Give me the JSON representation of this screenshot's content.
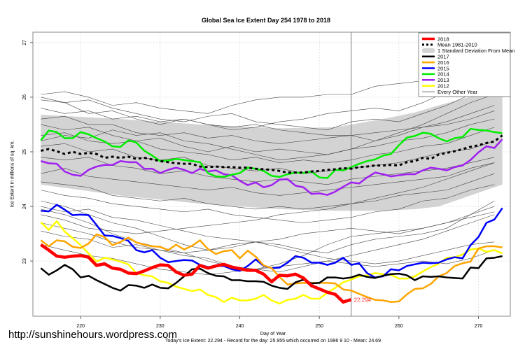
{
  "chart_data": {
    "type": "line",
    "title": "Global Sea Ice Extent Day 254 1978 to 2018",
    "xlabel": "Day of Year",
    "ylabel": "Ice Extent in millions of sq. km.",
    "xlim": [
      214,
      274
    ],
    "ylim": [
      21.99,
      27.19
    ],
    "xticks": [
      220,
      230,
      240,
      250,
      260,
      270
    ],
    "yticks": [
      23,
      24,
      25,
      26,
      27
    ],
    "grid": true,
    "current_day_marker": 254,
    "legend_position": "top-right",
    "series": [
      {
        "name": "2018",
        "color": "#ff0000",
        "width": 4.5,
        "dash": "",
        "start_day": 215,
        "values": [
          23.3,
          23.2,
          23.09,
          23.07,
          23.09,
          23.1,
          23.07,
          22.92,
          22.95,
          22.87,
          22.85,
          22.78,
          22.77,
          22.82,
          22.88,
          22.93,
          22.92,
          22.8,
          22.74,
          22.76,
          22.92,
          22.87,
          22.91,
          22.94,
          22.89,
          22.86,
          22.83,
          22.83,
          22.76,
          22.62,
          22.74,
          22.73,
          22.76,
          22.69,
          22.55,
          22.49,
          22.43,
          22.39,
          22.25,
          22.294
        ]
      },
      {
        "name": "Mean 1981-2010",
        "color": "#000000",
        "width": 3,
        "dash": "4,4",
        "start_day": 215,
        "values": [
          25.02,
          25.05,
          25.01,
          24.96,
          25.0,
          24.96,
          24.98,
          24.96,
          24.89,
          24.91,
          24.89,
          24.91,
          24.87,
          24.89,
          24.86,
          24.83,
          24.81,
          24.79,
          24.78,
          24.78,
          24.73,
          24.72,
          24.73,
          24.72,
          24.72,
          24.71,
          24.71,
          24.69,
          24.68,
          24.67,
          24.65,
          24.62,
          24.62,
          24.62,
          24.64,
          24.65,
          24.67,
          24.68,
          24.7,
          24.69,
          24.72,
          24.73,
          24.75,
          24.75,
          24.76,
          24.75,
          24.81,
          24.83,
          24.89,
          24.87,
          24.95,
          24.98,
          25.01,
          25.05,
          25.09,
          25.12,
          25.16,
          25.19,
          25.3
        ]
      },
      {
        "name": "2017",
        "color": "#000000",
        "width": 2.5,
        "dash": "",
        "start_day": 215,
        "values": [
          22.87,
          22.75,
          22.83,
          22.93,
          22.85,
          22.7,
          22.73,
          22.65,
          22.58,
          22.51,
          22.46,
          22.56,
          22.55,
          22.51,
          22.57,
          22.51,
          22.5,
          22.6,
          22.72,
          22.85,
          22.86,
          22.78,
          22.73,
          22.72,
          22.65,
          22.65,
          22.63,
          22.63,
          22.62,
          22.55,
          22.51,
          22.49,
          22.61,
          22.66,
          22.59,
          22.6,
          22.7,
          22.7,
          22.68,
          22.7,
          22.75,
          22.71,
          22.69,
          22.73,
          22.76,
          22.77,
          22.74,
          22.65,
          22.72,
          22.71,
          22.72,
          22.7,
          22.69,
          22.68,
          22.88,
          22.87,
          23.05,
          23.06,
          23.09
        ]
      },
      {
        "name": "2016",
        "color": "#ffa500",
        "width": 2.5,
        "dash": "",
        "start_day": 215,
        "values": [
          23.38,
          23.27,
          23.38,
          23.36,
          23.26,
          23.24,
          23.32,
          23.49,
          23.44,
          23.29,
          23.35,
          23.43,
          23.34,
          23.3,
          23.27,
          23.26,
          23.2,
          23.3,
          23.21,
          23.28,
          23.38,
          23.22,
          23.13,
          23.18,
          23.2,
          23.05,
          23.19,
          23.08,
          22.92,
          22.87,
          22.71,
          22.57,
          22.59,
          22.6,
          22.6,
          22.6,
          22.6,
          22.59,
          22.48,
          22.46,
          22.4,
          22.34,
          22.29,
          22.28,
          22.25,
          22.26,
          22.39,
          22.49,
          22.5,
          22.58,
          22.72,
          22.78,
          22.91,
          22.96,
          22.99,
          23.23,
          23.27,
          23.27,
          23.25
        ]
      },
      {
        "name": "2015",
        "color": "#0000ff",
        "width": 2.5,
        "dash": "",
        "start_day": 215,
        "values": [
          23.92,
          23.91,
          24.03,
          23.94,
          23.84,
          23.85,
          23.84,
          23.66,
          23.47,
          23.46,
          23.42,
          23.37,
          23.2,
          23.16,
          23.2,
          23.06,
          22.98,
          23.0,
          23.02,
          23.01,
          22.93,
          22.89,
          22.91,
          22.91,
          22.85,
          22.82,
          22.91,
          23.03,
          22.91,
          22.87,
          22.88,
          22.97,
          23.09,
          23.06,
          22.97,
          22.97,
          22.93,
          22.97,
          23.06,
          22.93,
          22.96,
          22.78,
          22.7,
          22.72,
          22.85,
          22.83,
          22.91,
          22.94,
          22.97,
          22.96,
          22.97,
          23.03,
          23.07,
          23.05,
          23.29,
          23.44,
          23.7,
          23.76,
          23.97
        ]
      },
      {
        "name": "2014",
        "color": "#00ee00",
        "width": 2.5,
        "dash": "",
        "start_day": 215,
        "values": [
          25.21,
          25.39,
          25.36,
          25.25,
          25.25,
          25.36,
          25.32,
          25.25,
          25.19,
          25.1,
          25.09,
          25.21,
          25.17,
          25.02,
          24.93,
          24.83,
          24.84,
          24.87,
          24.85,
          24.83,
          24.81,
          24.61,
          24.55,
          24.54,
          24.58,
          24.61,
          24.71,
          24.69,
          24.65,
          24.56,
          24.54,
          24.59,
          24.62,
          24.61,
          24.64,
          24.53,
          24.52,
          24.67,
          24.66,
          24.72,
          24.78,
          24.83,
          24.86,
          24.93,
          24.96,
          25.12,
          25.26,
          25.29,
          25.35,
          25.33,
          25.25,
          25.19,
          25.25,
          25.27,
          25.42,
          25.4,
          25.39,
          25.36,
          25.34
        ]
      },
      {
        "name": "2013",
        "color": "#a020f0",
        "width": 2.5,
        "dash": "",
        "start_day": 215,
        "values": [
          24.83,
          24.79,
          24.78,
          24.64,
          24.58,
          24.56,
          24.67,
          24.73,
          24.76,
          24.76,
          24.83,
          24.81,
          24.81,
          24.69,
          24.69,
          24.61,
          24.67,
          24.71,
          24.67,
          24.61,
          24.69,
          24.64,
          24.66,
          24.59,
          24.57,
          24.47,
          24.39,
          24.44,
          24.35,
          24.39,
          24.49,
          24.5,
          24.38,
          24.35,
          24.23,
          24.24,
          24.21,
          24.27,
          24.36,
          24.44,
          24.42,
          24.53,
          24.62,
          24.59,
          24.55,
          24.57,
          24.59,
          24.59,
          24.66,
          24.71,
          24.69,
          24.66,
          24.72,
          24.75,
          24.85,
          24.99,
          25.1,
          25.07,
          25.23
        ]
      },
      {
        "name": "2012",
        "color": "#ffff00",
        "width": 2.5,
        "dash": "",
        "start_day": 215,
        "values": [
          23.71,
          23.57,
          23.73,
          23.54,
          23.42,
          23.29,
          23.14,
          22.99,
          23.06,
          23.03,
          22.99,
          22.94,
          22.78,
          22.74,
          22.72,
          22.63,
          22.6,
          22.53,
          22.49,
          22.45,
          22.48,
          22.38,
          22.34,
          22.25,
          22.33,
          22.28,
          22.28,
          22.31,
          22.38,
          22.28,
          22.22,
          22.29,
          22.31,
          22.38,
          22.31,
          22.31,
          22.42,
          22.51,
          22.61,
          22.66,
          22.72,
          22.74,
          22.78,
          22.76,
          22.75,
          22.68,
          22.68,
          22.72,
          22.81,
          22.89,
          22.95,
          23.06,
          23.07,
          23.12,
          23.21,
          23.23,
          23.17,
          23.2,
          23.14
        ]
      }
    ],
    "std_band": {
      "name": "1 Standard Deviation From Mean",
      "color": "#d3d3d3",
      "days": [
        215,
        225,
        235,
        245,
        252,
        258,
        262,
        265,
        268,
        270,
        273
      ],
      "upper": [
        25.68,
        25.6,
        25.5,
        25.43,
        25.45,
        25.6,
        25.72,
        25.85,
        25.97,
        26.05,
        26.25
      ],
      "lower": [
        24.4,
        24.2,
        24.05,
        23.95,
        23.92,
        23.92,
        23.95,
        24.0,
        24.15,
        24.25,
        24.4
      ]
    },
    "other_years": {
      "name": "Every Other Year",
      "color": "#444444",
      "days": [
        215,
        218,
        221,
        224,
        227,
        230,
        233,
        236,
        239,
        242,
        245,
        248,
        251,
        254,
        257,
        260,
        263,
        266,
        269,
        272
      ],
      "lines": [
        [
          26.05,
          26.1,
          26.0,
          25.85,
          25.9,
          25.8,
          25.75,
          25.7,
          25.85,
          25.95,
          26.0,
          26.0,
          26.05,
          26.05,
          26.2,
          26.25,
          26.3,
          26.4,
          26.45,
          26.6
        ],
        [
          25.95,
          25.9,
          25.7,
          25.75,
          25.6,
          25.5,
          25.6,
          25.5,
          25.4,
          25.45,
          25.55,
          25.6,
          25.7,
          25.75,
          25.8,
          25.75,
          25.9,
          26.1,
          26.3,
          26.45
        ],
        [
          26.0,
          25.9,
          25.95,
          25.8,
          25.7,
          25.6,
          25.55,
          25.65,
          25.7,
          25.55,
          25.5,
          25.45,
          25.4,
          25.55,
          25.6,
          25.55,
          25.7,
          25.85,
          26.05,
          26.2
        ],
        [
          25.8,
          25.7,
          25.75,
          25.6,
          25.65,
          25.55,
          25.6,
          25.5,
          25.45,
          25.5,
          25.4,
          25.35,
          25.3,
          25.3,
          25.35,
          25.4,
          25.45,
          25.55,
          25.7,
          25.85
        ],
        [
          25.6,
          25.65,
          25.5,
          25.5,
          25.35,
          25.3,
          25.35,
          25.25,
          25.3,
          25.2,
          25.15,
          25.2,
          25.25,
          25.3,
          25.2,
          25.3,
          25.45,
          25.5,
          25.6,
          25.75
        ],
        [
          25.5,
          25.4,
          25.45,
          25.3,
          25.2,
          25.25,
          25.1,
          25.0,
          25.1,
          25.0,
          25.05,
          25.0,
          24.95,
          25.05,
          25.1,
          25.2,
          25.25,
          25.35,
          25.5,
          25.6
        ],
        [
          25.3,
          25.35,
          25.2,
          25.15,
          25.2,
          25.05,
          25.0,
          24.95,
          24.85,
          24.9,
          24.8,
          24.85,
          24.8,
          24.85,
          24.95,
          25.0,
          25.1,
          25.15,
          25.3,
          25.45
        ],
        [
          25.1,
          25.15,
          25.0,
          25.05,
          24.9,
          24.85,
          24.9,
          24.75,
          24.7,
          24.65,
          24.7,
          24.6,
          24.65,
          24.7,
          24.75,
          24.8,
          24.9,
          25.0,
          25.05,
          25.2
        ],
        [
          24.9,
          24.85,
          24.9,
          24.75,
          24.7,
          24.6,
          24.65,
          24.55,
          24.5,
          24.45,
          24.5,
          24.45,
          24.4,
          24.5,
          24.55,
          24.6,
          24.65,
          24.7,
          24.8,
          24.9
        ],
        [
          24.6,
          24.7,
          24.55,
          24.5,
          24.45,
          24.4,
          24.35,
          24.3,
          24.35,
          24.25,
          24.2,
          24.25,
          24.3,
          24.35,
          24.4,
          24.45,
          24.5,
          24.55,
          24.7,
          24.8
        ],
        [
          24.45,
          24.4,
          24.35,
          24.2,
          24.15,
          24.1,
          24.15,
          24.05,
          24.0,
          23.95,
          24.0,
          23.95,
          24.0,
          24.05,
          24.1,
          24.2,
          24.25,
          24.3,
          24.45,
          24.6
        ],
        [
          24.3,
          24.2,
          24.15,
          24.05,
          24.0,
          23.95,
          23.9,
          23.95,
          23.85,
          23.8,
          23.75,
          23.7,
          23.75,
          23.8,
          23.9,
          23.95,
          24.1,
          24.15,
          24.3,
          24.4
        ],
        [
          24.1,
          24.0,
          23.85,
          23.7,
          23.6,
          23.45,
          23.3,
          23.2,
          23.25,
          23.35,
          23.4,
          23.5,
          23.55,
          23.6,
          23.55,
          23.5,
          23.6,
          23.7,
          23.8,
          23.9
        ],
        [
          23.85,
          23.75,
          23.6,
          23.55,
          23.5,
          23.55,
          23.6,
          23.65,
          23.7,
          23.75,
          23.85,
          23.9,
          23.95,
          24.05,
          24.15,
          24.25,
          24.35,
          24.5,
          24.65,
          24.8
        ],
        [
          23.7,
          23.6,
          23.5,
          23.35,
          23.25,
          23.2,
          23.1,
          23.05,
          22.9,
          22.85,
          22.8,
          22.9,
          23.0,
          23.1,
          23.2,
          23.3,
          23.4,
          23.55,
          23.7,
          23.85
        ],
        [
          23.55,
          23.45,
          23.4,
          23.25,
          23.3,
          23.2,
          23.15,
          23.2,
          23.3,
          23.35,
          23.25,
          23.15,
          23.05,
          23.0,
          22.95,
          23.0,
          23.1,
          23.2,
          23.3,
          23.35
        ],
        [
          23.95,
          23.85,
          23.7,
          23.5,
          23.35,
          23.25,
          23.15,
          23.0,
          22.9,
          22.85,
          22.95,
          23.1,
          23.3,
          23.45,
          23.5,
          23.55,
          23.6,
          23.7,
          23.85,
          24.0
        ],
        [
          24.0,
          23.9,
          23.95,
          23.8,
          23.75,
          23.65,
          23.55,
          23.45,
          23.4,
          23.35,
          23.3,
          23.2,
          23.15,
          23.3,
          23.4,
          23.45,
          23.5,
          23.6,
          23.85,
          24.1
        ],
        [
          23.3,
          23.2,
          23.1,
          23.05,
          22.95,
          22.85,
          22.8,
          22.75,
          22.8,
          22.85,
          22.9,
          22.95,
          23.0,
          22.95,
          22.9,
          22.95,
          23.0,
          22.95,
          23.05,
          23.2
        ],
        [
          25.2,
          25.3,
          25.25,
          25.4,
          25.3,
          25.35,
          25.2,
          25.15,
          25.05,
          24.95,
          24.85,
          24.9,
          24.95,
          25.05,
          25.2,
          25.35,
          25.5,
          25.7,
          25.9,
          26.05
        ]
      ]
    },
    "end_label": {
      "text": "22.294",
      "color": "#ff3333",
      "day": 254,
      "value": 22.294
    },
    "footer": "Today's Ice Extent: 22.294  - Record for the day: 25.955 which occurred on 1996 9 10  - Mean: 24.69"
  },
  "watermark": "http://sunshinehours.wordpress.com"
}
